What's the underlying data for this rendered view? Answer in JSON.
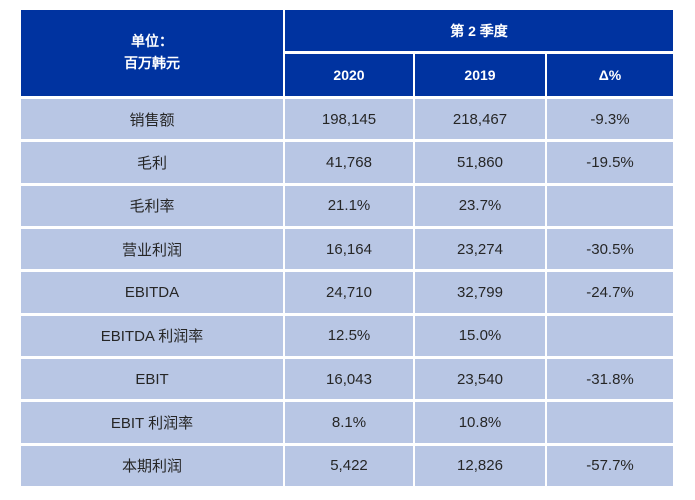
{
  "colors": {
    "header_bg": "#0033A0",
    "header_text": "#FFFFFF",
    "row_bg": "#B8C6E4",
    "body_text": "#262626",
    "divider": "#FFFFFF"
  },
  "table": {
    "unit_header": {
      "line1": "单位：",
      "line2": "百万韩元"
    },
    "quarter_header": "第 2 季度",
    "column_headers": {
      "y2020": "2020",
      "y2019": "2019",
      "delta": "Δ%"
    },
    "rows": [
      {
        "label": "销售额",
        "y2020": "198,145",
        "y2019": "218,467",
        "delta": "-9.3%"
      },
      {
        "label": "毛利",
        "y2020": "41,768",
        "y2019": "51,860",
        "delta": "-19.5%"
      },
      {
        "label": "毛利率",
        "y2020": "21.1%",
        "y2019": "23.7%",
        "delta": ""
      },
      {
        "label": "营业利润",
        "y2020": "16,164",
        "y2019": "23,274",
        "delta": "-30.5%"
      },
      {
        "label": "EBITDA",
        "y2020": "24,710",
        "y2019": "32,799",
        "delta": "-24.7%"
      },
      {
        "label": "EBITDA 利润率",
        "y2020": "12.5%",
        "y2019": "15.0%",
        "delta": ""
      },
      {
        "label": "EBIT",
        "y2020": "16,043",
        "y2019": "23,540",
        "delta": "-31.8%"
      },
      {
        "label": "EBIT 利润率",
        "y2020": "8.1%",
        "y2019": "10.8%",
        "delta": ""
      },
      {
        "label": "本期利润",
        "y2020": "5,422",
        "y2019": "12,826",
        "delta": "-57.7%"
      }
    ]
  },
  "chart_data": {
    "type": "table",
    "title": "第 2 季度",
    "unit": "单位：百万韩元",
    "columns": [
      "2020",
      "2019",
      "Δ%"
    ],
    "categories": [
      "销售额",
      "毛利",
      "毛利率",
      "营业利润",
      "EBITDA",
      "EBITDA 利润率",
      "EBIT",
      "EBIT 利润率",
      "本期利润"
    ],
    "series": [
      {
        "name": "2020",
        "values": [
          "198,145",
          "41,768",
          "21.1%",
          "16,164",
          "24,710",
          "12.5%",
          "16,043",
          "8.1%",
          "5,422"
        ]
      },
      {
        "name": "2019",
        "values": [
          "218,467",
          "51,860",
          "23.7%",
          "23,274",
          "32,799",
          "15.0%",
          "23,540",
          "10.8%",
          "12,826"
        ]
      },
      {
        "name": "Δ%",
        "values": [
          "-9.3%",
          "-19.5%",
          "",
          "-30.5%",
          "-24.7%",
          "",
          "-31.8%",
          "",
          "-57.7%"
        ]
      }
    ]
  }
}
